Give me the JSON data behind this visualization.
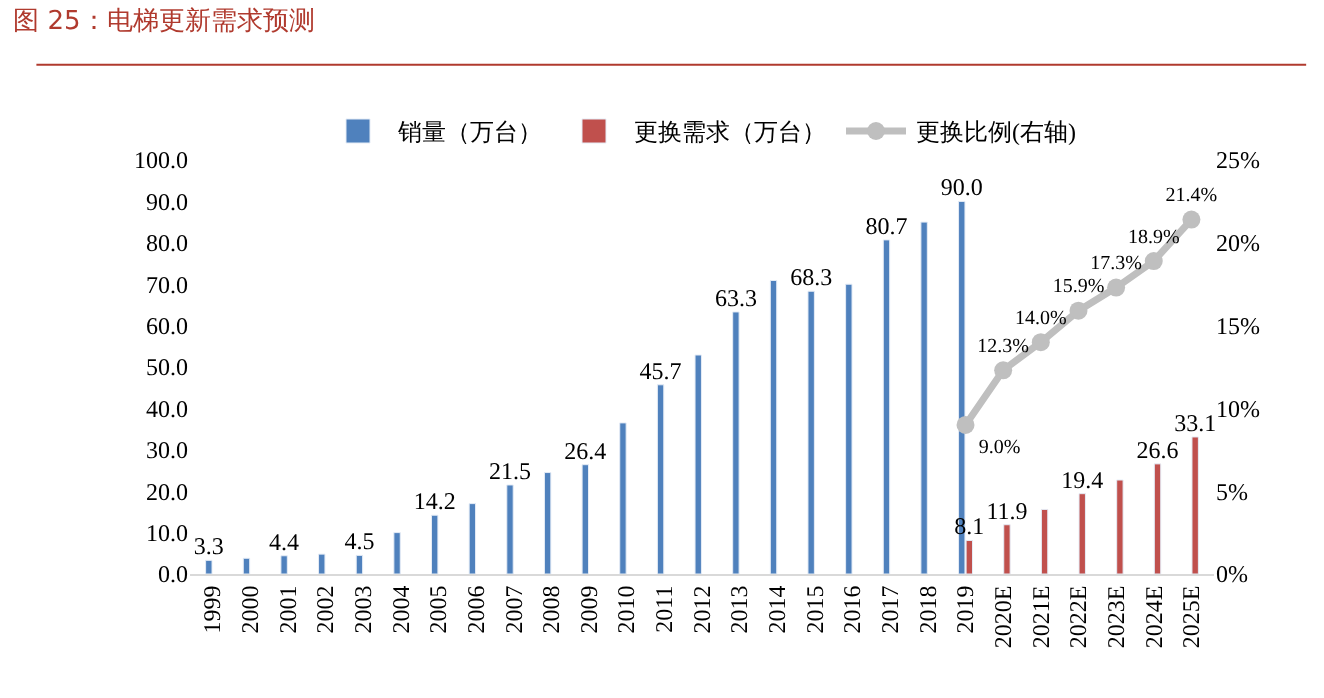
{
  "chart_data": {
    "type": "bar",
    "title": "图 25：电梯更新需求预测",
    "categories": [
      "1999",
      "2000",
      "2001",
      "2002",
      "2003",
      "2004",
      "2005",
      "2006",
      "2007",
      "2008",
      "2009",
      "2010",
      "2011",
      "2012",
      "2013",
      "2014",
      "2015",
      "2016",
      "2017",
      "2018",
      "2019",
      "2020E",
      "2021E",
      "2022E",
      "2023E",
      "2024E",
      "2025E"
    ],
    "series": [
      {
        "name": "销量（万台）",
        "color": "#4f81bd",
        "values": [
          3.3,
          3.8,
          4.4,
          4.8,
          4.5,
          10.0,
          14.2,
          17.0,
          21.5,
          24.5,
          26.4,
          36.5,
          45.7,
          52.9,
          63.3,
          70.9,
          68.3,
          70.0,
          80.7,
          85.0,
          90.0,
          null,
          null,
          null,
          null,
          null,
          null
        ],
        "value_labels": [
          "3.3",
          null,
          "4.4",
          null,
          "4.5",
          null,
          "14.2",
          null,
          "21.5",
          null,
          "26.4",
          null,
          "45.7",
          null,
          "63.3",
          null,
          "68.3",
          null,
          "80.7",
          null,
          "90.0",
          null,
          null,
          null,
          null,
          null,
          null
        ]
      },
      {
        "name": "更换需求（万台）",
        "color": "#c0504d",
        "values": [
          null,
          null,
          null,
          null,
          null,
          null,
          null,
          null,
          null,
          null,
          null,
          null,
          null,
          null,
          null,
          null,
          null,
          null,
          null,
          null,
          8.1,
          11.9,
          15.6,
          19.4,
          22.7,
          26.6,
          33.1
        ],
        "value_labels": [
          null,
          null,
          null,
          null,
          null,
          null,
          null,
          null,
          null,
          null,
          null,
          null,
          null,
          null,
          null,
          null,
          null,
          null,
          null,
          null,
          "8.1",
          "11.9",
          null,
          "19.4",
          null,
          "26.6",
          "33.1"
        ]
      },
      {
        "name": "更换比例(右轴)",
        "type": "line",
        "axis": "y2",
        "color": "#bfbfbf",
        "marker": "circle",
        "values": [
          null,
          null,
          null,
          null,
          null,
          null,
          null,
          null,
          null,
          null,
          null,
          null,
          null,
          null,
          null,
          null,
          null,
          null,
          null,
          null,
          9.0,
          12.3,
          14.0,
          15.9,
          17.3,
          18.9,
          21.4
        ],
        "value_labels": [
          null,
          null,
          null,
          null,
          null,
          null,
          null,
          null,
          null,
          null,
          null,
          null,
          null,
          null,
          null,
          null,
          null,
          null,
          null,
          null,
          "9.0%",
          "12.3%",
          "14.0%",
          "15.9%",
          "17.3%",
          "18.9%",
          "21.4%"
        ]
      }
    ],
    "ylim": [
      0,
      100
    ],
    "yticks": [
      {
        "value": 0,
        "label": "0.0"
      },
      {
        "value": 10,
        "label": "10.0"
      },
      {
        "value": 20,
        "label": "20.0"
      },
      {
        "value": 30,
        "label": "30.0"
      },
      {
        "value": 40,
        "label": "40.0"
      },
      {
        "value": 50,
        "label": "50.0"
      },
      {
        "value": 60,
        "label": "60.0"
      },
      {
        "value": 70,
        "label": "70.0"
      },
      {
        "value": 80,
        "label": "80.0"
      },
      {
        "value": 90,
        "label": "90.0"
      },
      {
        "value": 100,
        "label": "100.0"
      }
    ],
    "y2lim": [
      0,
      25
    ],
    "y2ticks": [
      {
        "value": 0,
        "label": "0%"
      },
      {
        "value": 5,
        "label": "5%"
      },
      {
        "value": 10,
        "label": "10%"
      },
      {
        "value": 15,
        "label": "15%"
      },
      {
        "value": 20,
        "label": "20%"
      },
      {
        "value": 25,
        "label": "25%"
      }
    ],
    "legend": "top"
  }
}
